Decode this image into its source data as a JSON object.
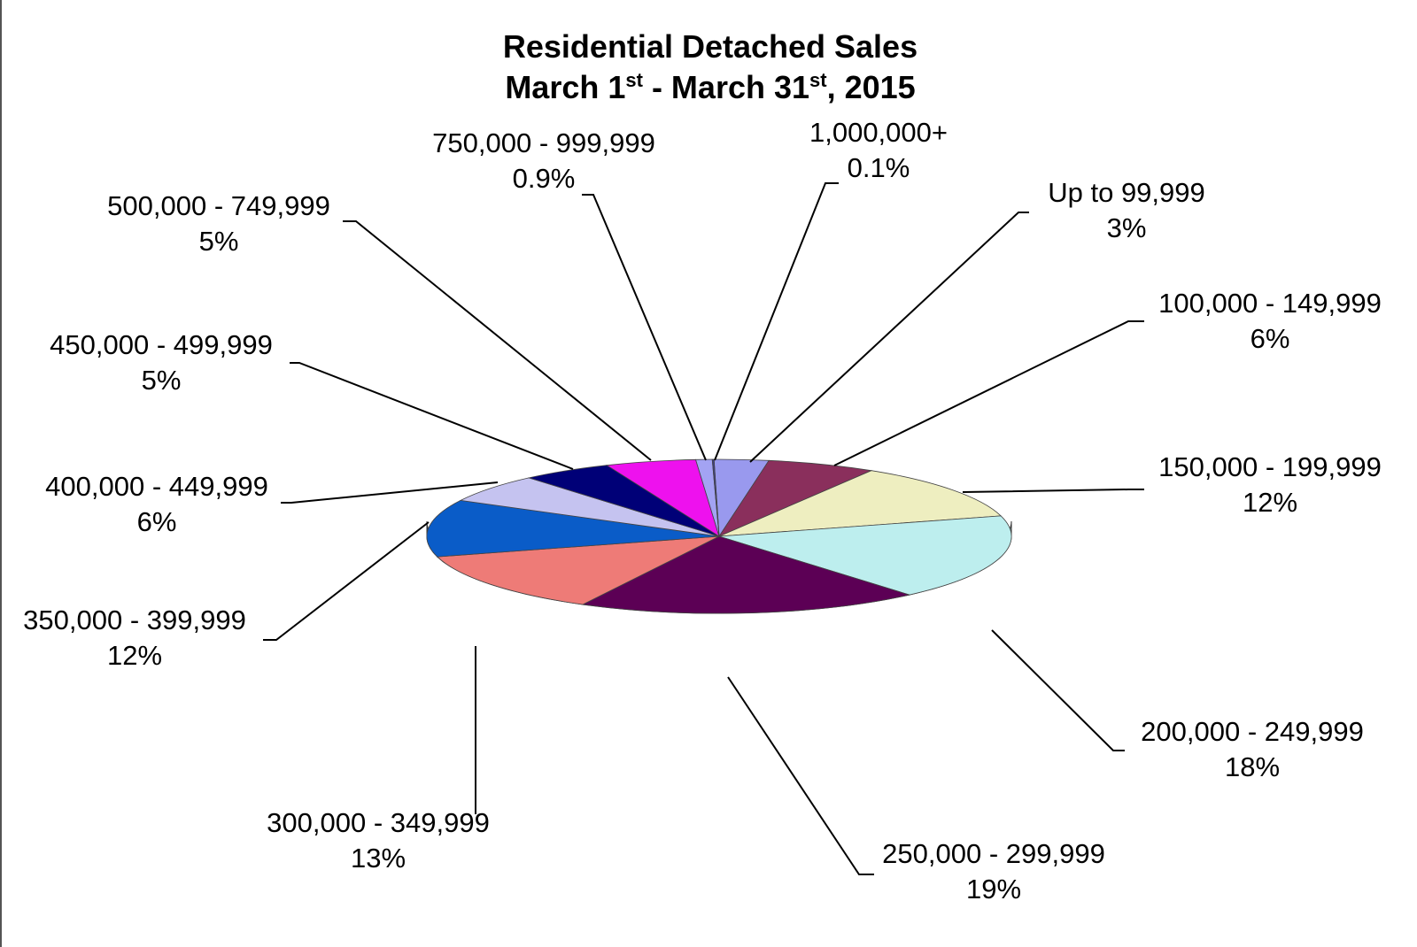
{
  "chart_data": {
    "type": "pie",
    "title": {
      "line1": "Residential Detached Sales",
      "line2": {
        "part1": "March 1",
        "sup1": "st",
        "part2": " - March 31",
        "sup2": "st",
        "part3": ", 2015"
      }
    },
    "slices": [
      {
        "label": "Up to 99,999",
        "percent_label": "3%",
        "value": 3,
        "color": "#9999ee"
      },
      {
        "label": "100,000 - 149,999",
        "percent_label": "6%",
        "value": 6,
        "color": "#8a2f5c"
      },
      {
        "label": "150,000 - 199,999",
        "percent_label": "12%",
        "value": 12,
        "color": "#eeeec0"
      },
      {
        "label": "200,000 - 249,999",
        "percent_label": "18%",
        "value": 18,
        "color": "#bdeeee"
      },
      {
        "label": "250,000 - 299,999",
        "percent_label": "19%",
        "value": 19,
        "color": "#5c0055"
      },
      {
        "label": "300,000 - 349,999",
        "percent_label": "13%",
        "value": 13,
        "color": "#ee7b77"
      },
      {
        "label": "350,000 - 399,999",
        "percent_label": "12%",
        "value": 12,
        "color": "#0a5cc8"
      },
      {
        "label": "400,000 - 449,999",
        "percent_label": "6%",
        "value": 6,
        "color": "#c5c3f0"
      },
      {
        "label": "450,000 - 499,999",
        "percent_label": "5%",
        "value": 5,
        "color": "#000077"
      },
      {
        "label": "500,000 - 749,999",
        "percent_label": "5%",
        "value": 5,
        "color": "#ee11ee"
      },
      {
        "label": "750,000 - 999,999",
        "percent_label": "0.9%",
        "value": 0.9,
        "color": "#a3a3f3"
      },
      {
        "label": "1,000,000+",
        "percent_label": "0.1%",
        "value": 0.1,
        "color": "#3e3e88"
      }
    ]
  }
}
